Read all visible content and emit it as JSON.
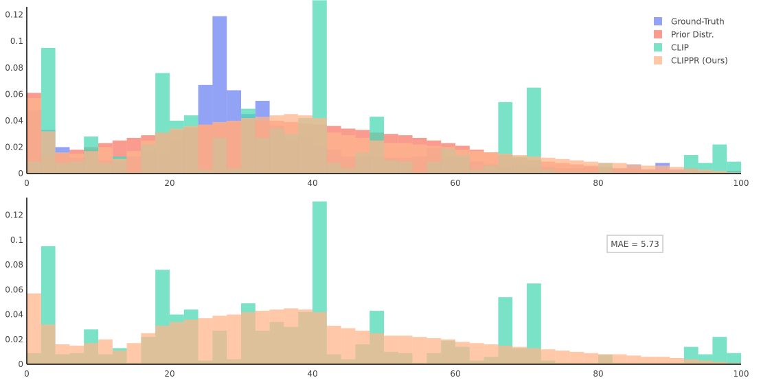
{
  "chart_data": [
    {
      "type": "bar",
      "bin_width": 2,
      "x_start": 0,
      "xlim": [
        0,
        100
      ],
      "ylim": [
        0,
        0.125
      ],
      "xticks": [
        0,
        20,
        40,
        60,
        80,
        100
      ],
      "yticks": [
        0,
        0.02,
        0.04,
        0.06,
        0.08,
        0.1,
        0.12
      ],
      "xtick_labels": [
        "0",
        "20",
        "40",
        "60",
        "80",
        "100"
      ],
      "ytick_labels": [
        "0",
        "0.02",
        "0.04",
        "0.06",
        "0.08",
        "0.1",
        "0.12"
      ],
      "legend_position": "top-right",
      "series": [
        {
          "name": "Ground-Truth",
          "color": "#6e83f0",
          "values": [
            0.048,
            0.033,
            0.02,
            0.012,
            0.018,
            0.01,
            0.009,
            0.013,
            0.017,
            0.015,
            0.025,
            0.034,
            0.067,
            0.119,
            0.063,
            0.045,
            0.055,
            0.036,
            0.026,
            0.028,
            0.021,
            0.018,
            0.013,
            0.013,
            0.013,
            0.012,
            0.012,
            0.013,
            0.019,
            0.012,
            0.012,
            0.009,
            0.007,
            0.006,
            0.007,
            0.006,
            0.005,
            0.004,
            0.004,
            0.005,
            0.004,
            0.004,
            0.007,
            0.003,
            0.008,
            0.003,
            0.004,
            0.002,
            0.001,
            0.002
          ]
        },
        {
          "name": "Prior Distr.",
          "color": "#f87a6b",
          "values": [
            0.061,
            0.014,
            0.015,
            0.018,
            0.02,
            0.023,
            0.025,
            0.027,
            0.029,
            0.031,
            0.033,
            0.035,
            0.037,
            0.038,
            0.039,
            0.04,
            0.04,
            0.04,
            0.039,
            0.038,
            0.037,
            0.036,
            0.034,
            0.033,
            0.031,
            0.03,
            0.029,
            0.027,
            0.025,
            0.023,
            0.021,
            0.018,
            0.016,
            0.014,
            0.012,
            0.01,
            0.009,
            0.008,
            0.007,
            0.006,
            0.005,
            0.004,
            0.004,
            0.003,
            0.003,
            0.002,
            0.002,
            0.001,
            0.001,
            0.001
          ]
        },
        {
          "name": "CLIP",
          "color": "#4cd8b4",
          "values": [
            0.009,
            0.095,
            0.008,
            0.009,
            0.028,
            0.008,
            0.013,
            0.001,
            0.022,
            0.076,
            0.04,
            0.044,
            0.003,
            0.027,
            0.004,
            0.049,
            0.027,
            0.034,
            0.03,
            0.042,
            0.131,
            0.008,
            0.004,
            0.016,
            0.043,
            0.01,
            0.009,
            0.001,
            0.009,
            0.019,
            0.014,
            0.003,
            0.006,
            0.054,
            0.013,
            0.065,
            0.003,
            0.001,
            0.001,
            0.001,
            0.008,
            0.001,
            0.001,
            0.001,
            0.001,
            0.001,
            0.014,
            0.008,
            0.022,
            0.009
          ]
        },
        {
          "name": "CLIPPR (Ours)",
          "color": "#fdb68c",
          "values": [
            0.057,
            0.032,
            0.016,
            0.015,
            0.017,
            0.02,
            0.011,
            0.017,
            0.025,
            0.031,
            0.034,
            0.036,
            0.037,
            0.039,
            0.04,
            0.042,
            0.043,
            0.044,
            0.045,
            0.044,
            0.042,
            0.031,
            0.029,
            0.027,
            0.025,
            0.023,
            0.023,
            0.022,
            0.021,
            0.02,
            0.018,
            0.017,
            0.016,
            0.015,
            0.014,
            0.013,
            0.012,
            0.011,
            0.01,
            0.009,
            0.008,
            0.008,
            0.007,
            0.006,
            0.006,
            0.005,
            0.004,
            0.003,
            0.002,
            0.001
          ]
        }
      ]
    },
    {
      "type": "bar",
      "bin_width": 2,
      "x_start": 0,
      "xlim": [
        0,
        100
      ],
      "ylim": [
        0,
        0.133
      ],
      "xticks": [
        0,
        20,
        40,
        60,
        80,
        100
      ],
      "yticks": [
        0,
        0.02,
        0.04,
        0.06,
        0.08,
        0.1,
        0.12
      ],
      "xtick_labels": [
        "0",
        "20",
        "40",
        "60",
        "80",
        "100"
      ],
      "ytick_labels": [
        "0",
        "0.02",
        "0.04",
        "0.06",
        "0.08",
        "0.1",
        "0.12"
      ],
      "annotation": "MAE = 5.73",
      "series": [
        {
          "name": "CLIP",
          "color": "#4cd8b4",
          "values": [
            0.009,
            0.095,
            0.008,
            0.009,
            0.028,
            0.008,
            0.013,
            0.001,
            0.022,
            0.076,
            0.04,
            0.044,
            0.003,
            0.027,
            0.004,
            0.049,
            0.027,
            0.034,
            0.03,
            0.042,
            0.131,
            0.008,
            0.004,
            0.016,
            0.043,
            0.01,
            0.009,
            0.001,
            0.009,
            0.019,
            0.014,
            0.003,
            0.006,
            0.054,
            0.013,
            0.065,
            0.003,
            0.001,
            0.001,
            0.001,
            0.008,
            0.001,
            0.001,
            0.001,
            0.001,
            0.001,
            0.014,
            0.008,
            0.022,
            0.009
          ]
        },
        {
          "name": "CLIPPR (Ours)",
          "color": "#fdb68c",
          "values": [
            0.057,
            0.032,
            0.016,
            0.015,
            0.017,
            0.02,
            0.011,
            0.017,
            0.025,
            0.031,
            0.034,
            0.036,
            0.037,
            0.039,
            0.04,
            0.042,
            0.043,
            0.044,
            0.045,
            0.044,
            0.042,
            0.031,
            0.029,
            0.027,
            0.025,
            0.023,
            0.023,
            0.022,
            0.021,
            0.02,
            0.018,
            0.017,
            0.016,
            0.015,
            0.014,
            0.013,
            0.012,
            0.011,
            0.01,
            0.009,
            0.008,
            0.008,
            0.007,
            0.006,
            0.006,
            0.005,
            0.004,
            0.003,
            0.002,
            0.001
          ]
        }
      ]
    }
  ],
  "legend": {
    "items": [
      {
        "label": "Ground-Truth",
        "color": "#6e83f0"
      },
      {
        "label": "Prior Distr.",
        "color": "#f87a6b"
      },
      {
        "label": "CLIP",
        "color": "#4cd8b4"
      },
      {
        "label": "CLIPPR (Ours)",
        "color": "#fdb68c"
      }
    ]
  }
}
